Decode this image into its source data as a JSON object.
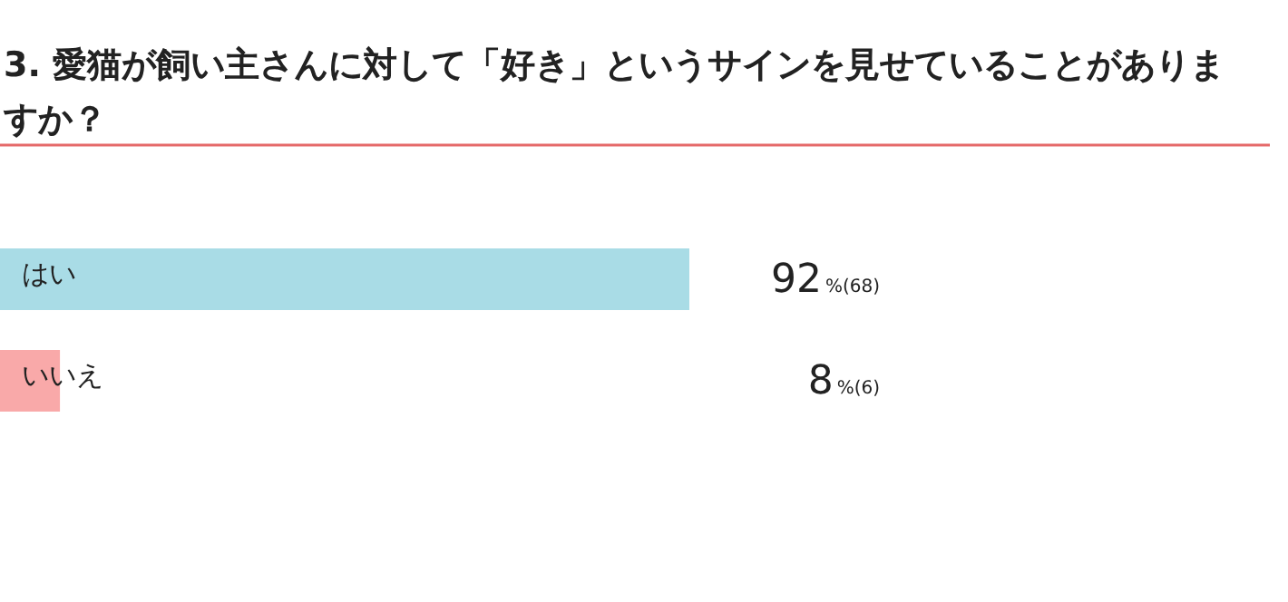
{
  "chart_data": {
    "type": "bar",
    "orientation": "horizontal",
    "title": "3. 愛猫が飼い主さんに対して「好き」というサインを見せていることがありますか？",
    "categories": [
      "はい",
      "いいえ"
    ],
    "values": [
      92,
      8
    ],
    "colors": [
      "#a9dce6",
      "#f9a9a9"
    ],
    "value_labels": [
      "92%(68)",
      "8%(6)"
    ]
  }
}
